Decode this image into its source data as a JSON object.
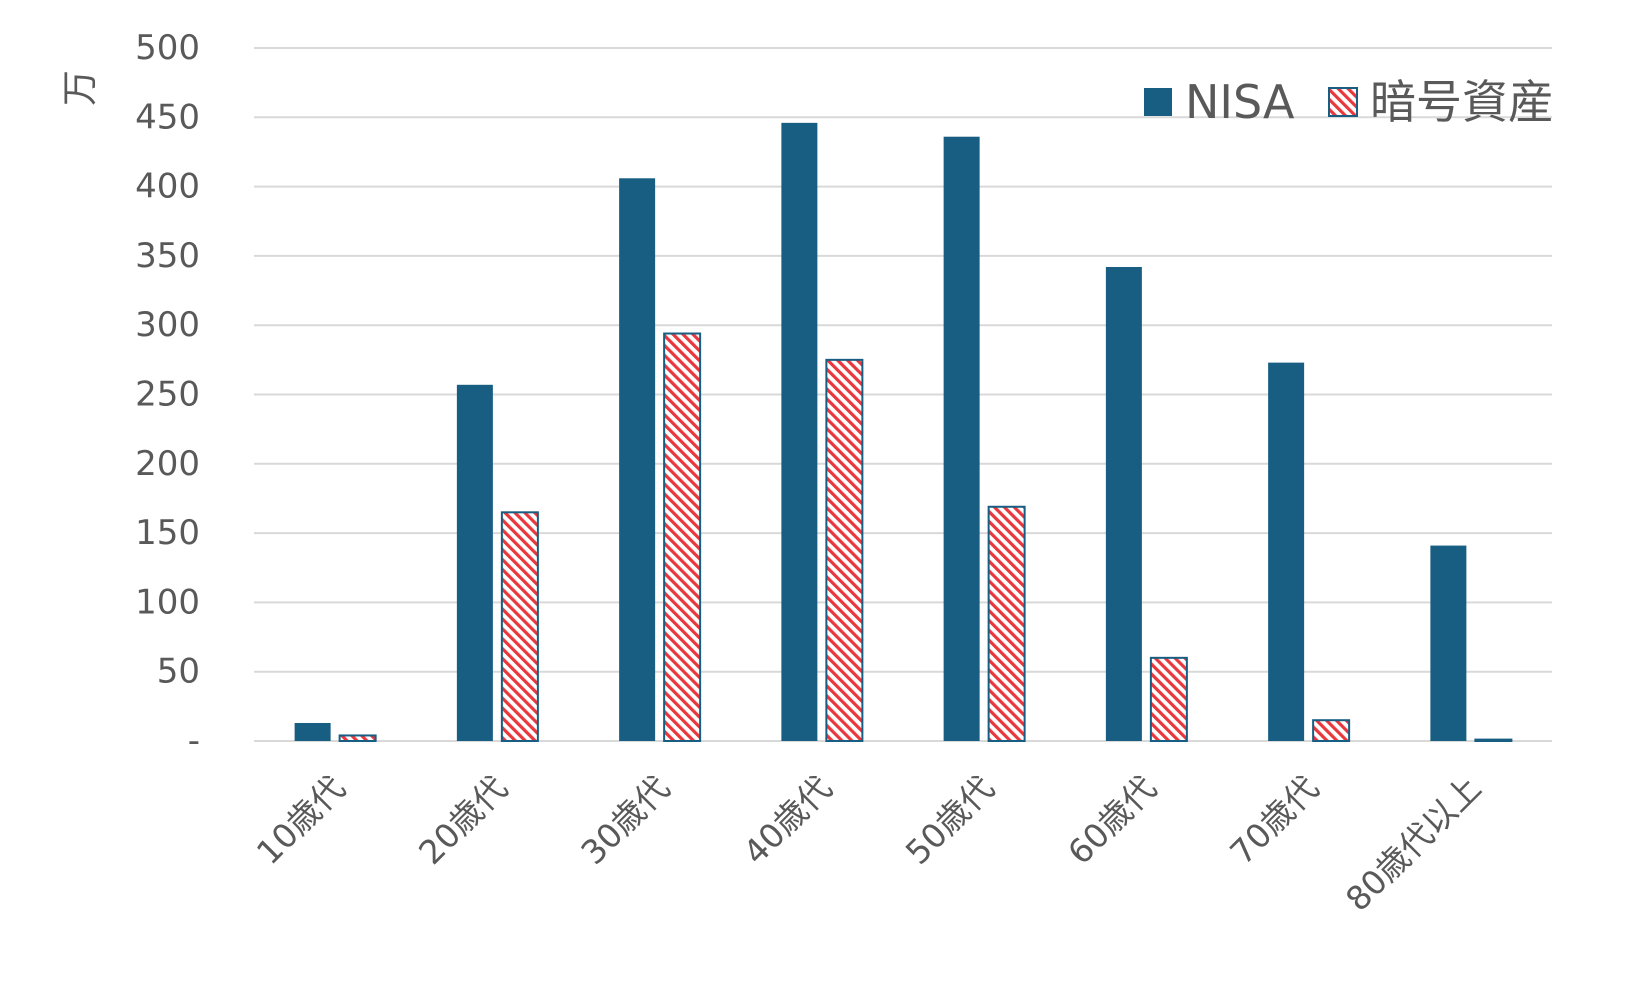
{
  "chart_data": {
    "type": "bar",
    "title": "",
    "xlabel": "",
    "ylabel": "万",
    "categories": [
      "10歳代",
      "20歳代",
      "30歳代",
      "40歳代",
      "50歳代",
      "60歳代",
      "70歳代",
      "80歳代以上"
    ],
    "series": [
      {
        "name": "NISA",
        "color": "#175E82",
        "pattern": "solid",
        "values": [
          13,
          257,
          406,
          446,
          436,
          342,
          273,
          141
        ]
      },
      {
        "name": "暗号資産",
        "color": "#E8383D",
        "pattern": "diagonal-hatch",
        "values": [
          4,
          165,
          294,
          275,
          169,
          60,
          15,
          1
        ]
      }
    ],
    "ylim": [
      0,
      500
    ],
    "yticks": [
      0,
      50,
      100,
      150,
      200,
      250,
      300,
      350,
      400,
      450,
      500
    ],
    "ytick_labels": [
      "-",
      "50",
      "100",
      "150",
      "200",
      "250",
      "300",
      "350",
      "400",
      "450",
      "500"
    ],
    "grid": true,
    "legend_position": "top-right"
  }
}
